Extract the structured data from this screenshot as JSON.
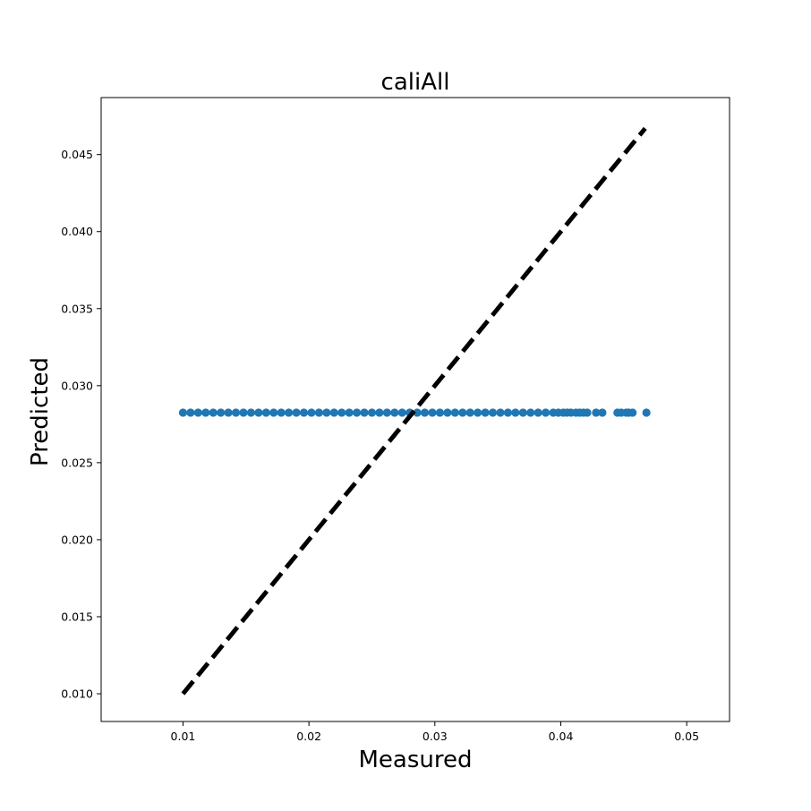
{
  "chart_data": {
    "type": "scatter",
    "title": "caliAll",
    "xlabel": "Measured",
    "ylabel": "Predicted",
    "xlim": [
      0.0035,
      0.0534
    ],
    "ylim": [
      0.0082,
      0.0487
    ],
    "xticks": [
      0.01,
      0.02,
      0.03,
      0.04,
      0.05
    ],
    "xtick_labels": [
      "0.01",
      "0.02",
      "0.03",
      "0.04",
      "0.05"
    ],
    "yticks": [
      0.01,
      0.015,
      0.02,
      0.025,
      0.03,
      0.035,
      0.04,
      0.045
    ],
    "ytick_labels": [
      "0.010",
      "0.015",
      "0.020",
      "0.025",
      "0.030",
      "0.035",
      "0.040",
      "0.045"
    ],
    "grid": false,
    "series": [
      {
        "kind": "scatter",
        "color": "#1f77b4",
        "x": [
          0.01,
          0.0106,
          0.0112,
          0.0118,
          0.0124,
          0.013,
          0.0136,
          0.0142,
          0.0148,
          0.0154,
          0.016,
          0.0166,
          0.0172,
          0.0178,
          0.0184,
          0.019,
          0.0196,
          0.0202,
          0.0208,
          0.0214,
          0.022,
          0.0226,
          0.0232,
          0.0238,
          0.0244,
          0.025,
          0.0256,
          0.0262,
          0.0268,
          0.0274,
          0.028,
          0.0286,
          0.0292,
          0.0298,
          0.0304,
          0.031,
          0.0316,
          0.0322,
          0.0328,
          0.0334,
          0.034,
          0.0346,
          0.0352,
          0.0358,
          0.0364,
          0.037,
          0.0376,
          0.0382,
          0.0388,
          0.0394,
          0.0398,
          0.0402,
          0.0405,
          0.0408,
          0.0412,
          0.0415,
          0.0418,
          0.0421,
          0.0428,
          0.0433,
          0.0445,
          0.0448,
          0.0452,
          0.0454,
          0.0457,
          0.0468
        ],
        "y": [
          0.02825,
          0.02825,
          0.02825,
          0.02825,
          0.02825,
          0.02825,
          0.02825,
          0.02825,
          0.02825,
          0.02825,
          0.02825,
          0.02825,
          0.02825,
          0.02825,
          0.02825,
          0.02825,
          0.02825,
          0.02825,
          0.02825,
          0.02825,
          0.02825,
          0.02825,
          0.02825,
          0.02825,
          0.02825,
          0.02825,
          0.02825,
          0.02825,
          0.02825,
          0.02825,
          0.02825,
          0.02825,
          0.02825,
          0.02825,
          0.02825,
          0.02825,
          0.02825,
          0.02825,
          0.02825,
          0.02825,
          0.02825,
          0.02825,
          0.02825,
          0.02825,
          0.02825,
          0.02825,
          0.02825,
          0.02825,
          0.02825,
          0.02825,
          0.02825,
          0.02825,
          0.02825,
          0.02825,
          0.02825,
          0.02825,
          0.02825,
          0.02825,
          0.02825,
          0.02825,
          0.02825,
          0.02825,
          0.02825,
          0.02825,
          0.02825,
          0.02825
        ]
      },
      {
        "kind": "line",
        "style": "dashed",
        "color": "#000000",
        "x": [
          0.01,
          0.0467
        ],
        "y": [
          0.01,
          0.0467
        ]
      }
    ]
  }
}
